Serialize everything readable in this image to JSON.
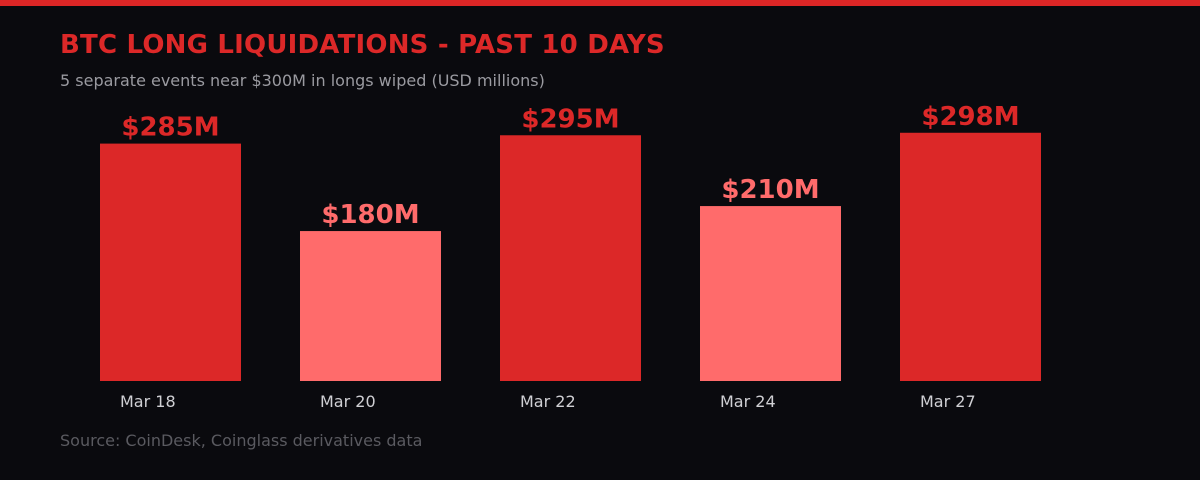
{
  "header": {
    "title": "BTC LONG LIQUIDATIONS - PAST 10 DAYS",
    "subtitle": "5 separate events near $300M in longs wiped (USD millions)"
  },
  "footer": {
    "source": "Source: CoinDesk, Coinglass derivatives data"
  },
  "colors": {
    "accent": "#dc2828",
    "light": "#ff6b6b",
    "background": "#0a0a0e",
    "tick": "#d0d0d4"
  },
  "chart_data": {
    "type": "bar",
    "title": "BTC LONG LIQUIDATIONS - PAST 10 DAYS",
    "subtitle": "5 separate events near $300M in longs wiped (USD millions)",
    "categories": [
      "Mar 18",
      "Mar 20",
      "Mar 22",
      "Mar 24",
      "Mar 27"
    ],
    "values": [
      285,
      180,
      295,
      210,
      298
    ],
    "data_labels": [
      "$285M",
      "$180M",
      "$295M",
      "$210M",
      "$298M"
    ],
    "bar_colors": [
      "#dc2828",
      "#ff6b6b",
      "#dc2828",
      "#ff6b6b",
      "#dc2828"
    ],
    "ylim": [
      0,
      300
    ],
    "grid": false,
    "legend": "none"
  }
}
